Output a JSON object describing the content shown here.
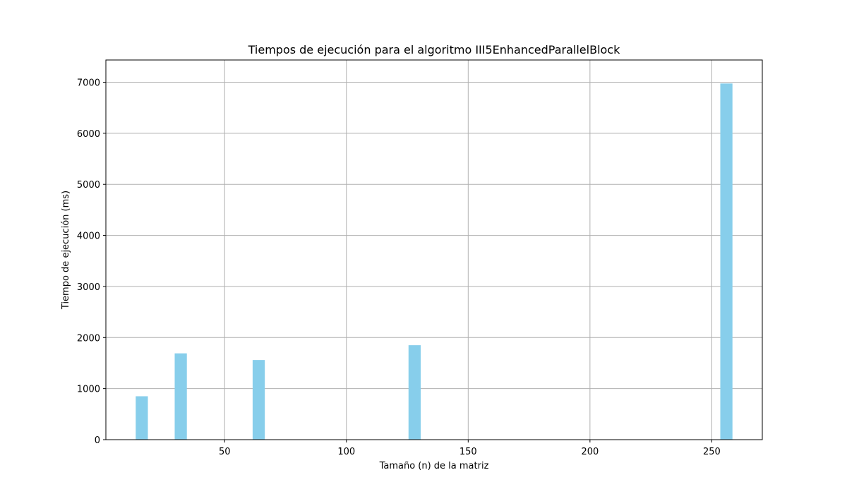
{
  "chart_data": {
    "type": "bar",
    "title": "Tiempos de ejecución para el algoritmo III5EnhancedParallelBlock",
    "xlabel": "Tamaño (n) de la matriz",
    "ylabel": "Tiempo de ejecución (ms)",
    "x": [
      16,
      32,
      64,
      128,
      256
    ],
    "values": [
      850,
      1690,
      1560,
      1850,
      6975
    ],
    "bar_width": 5,
    "xlim": [
      16,
      256
    ],
    "ylim": [
      0,
      7000
    ],
    "xticks": [
      50,
      100,
      150,
      200,
      250
    ],
    "yticks": [
      0,
      1000,
      2000,
      3000,
      4000,
      5000,
      6000,
      7000
    ],
    "grid": true,
    "bar_color": "#87CEEB"
  }
}
